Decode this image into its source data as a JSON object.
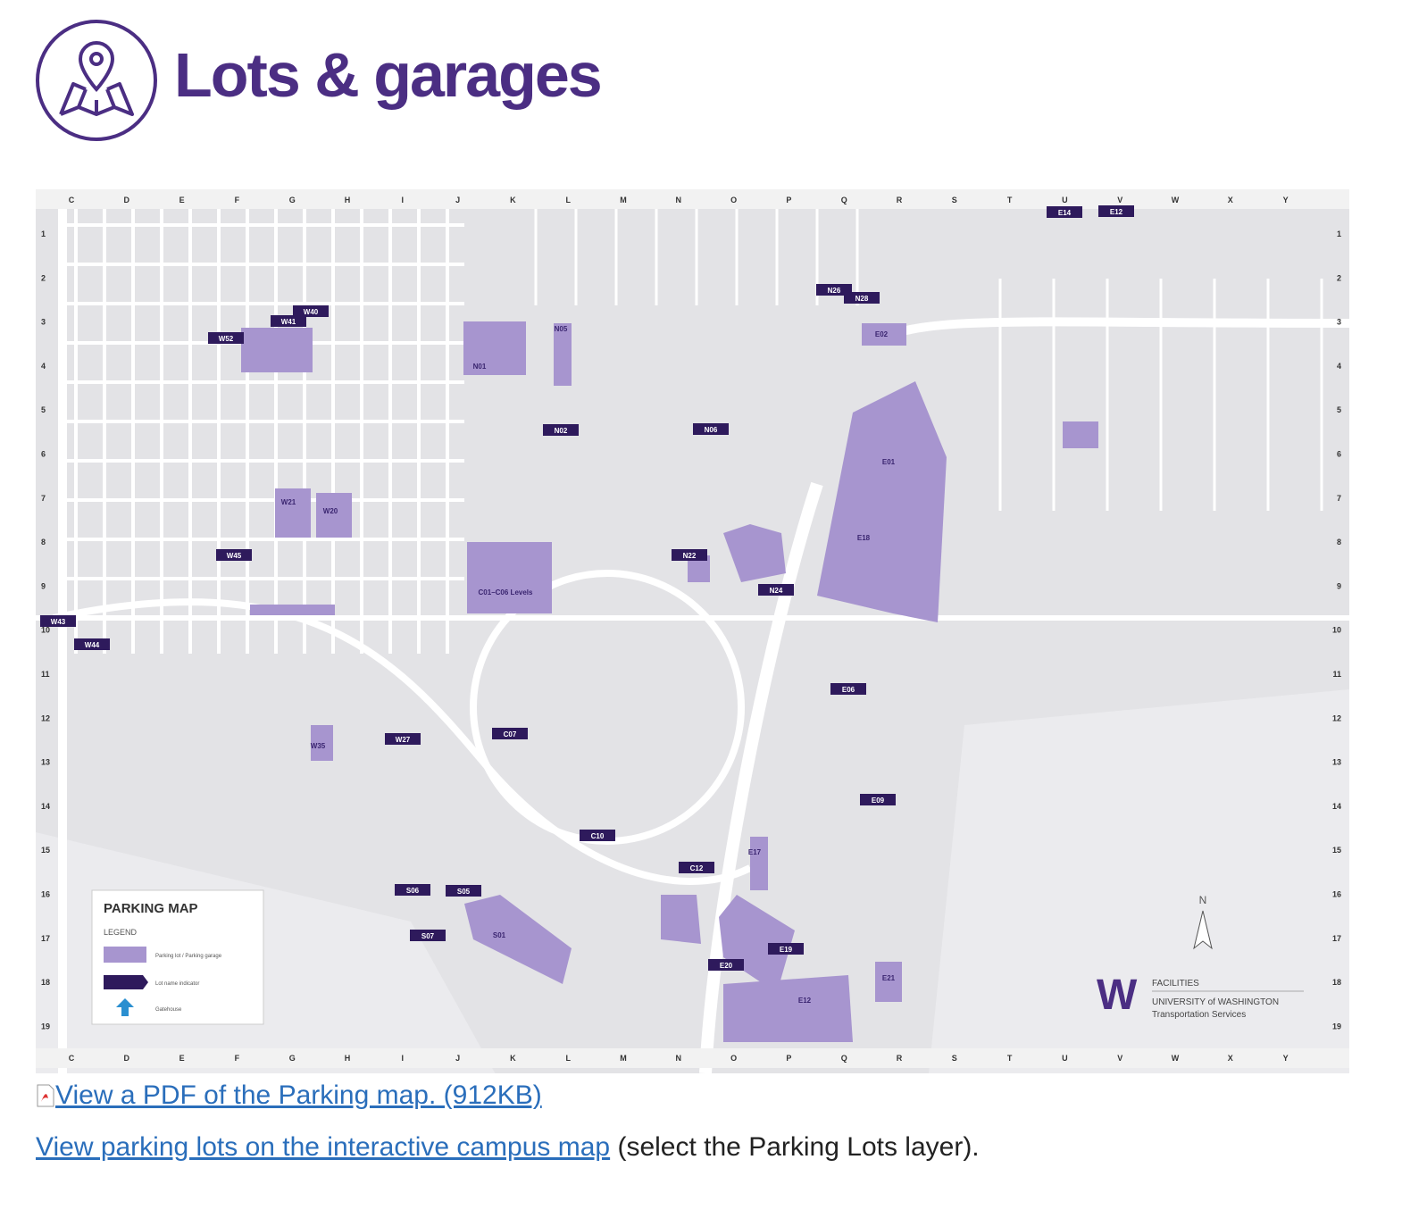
{
  "header": {
    "title": "Lots & garages"
  },
  "map": {
    "columns": [
      "C",
      "D",
      "E",
      "F",
      "G",
      "H",
      "I",
      "J",
      "K",
      "L",
      "M",
      "N",
      "O",
      "P",
      "Q",
      "R",
      "S",
      "T",
      "U",
      "V",
      "W",
      "X",
      "Y"
    ],
    "rows": [
      "1",
      "2",
      "3",
      "4",
      "5",
      "6",
      "7",
      "8",
      "9",
      "10",
      "11",
      "12",
      "13",
      "14",
      "15",
      "16",
      "17",
      "18",
      "19"
    ],
    "legend": {
      "title": "PARKING MAP",
      "subtitle": "LEGEND",
      "items": [
        "Parking lot / Parking garage",
        "Lot name indicator",
        "Gatehouse"
      ]
    },
    "north": "N",
    "logo": {
      "mark": "W",
      "facilities": "FACILITIES",
      "university": "UNIVERSITY of WASHINGTON",
      "unit": "Transportation Services"
    },
    "lots": [
      "E14",
      "E12",
      "N26",
      "N28",
      "E02",
      "N05",
      "N01",
      "E01",
      "E18",
      "W21",
      "W20",
      "W45",
      "N02",
      "N06",
      "N22",
      "N24",
      "C01–C06 Levels",
      "W43",
      "W44",
      "W35",
      "W27",
      "C07",
      "C10",
      "C12",
      "E17",
      "S01",
      "E12",
      "E21",
      "E06",
      "E09",
      "S06",
      "S07",
      "S05",
      "E19",
      "E20",
      "W52",
      "W41",
      "W40"
    ]
  },
  "links": {
    "pdf": "View a PDF of the Parking map. (912KB)",
    "campus_map": "View parking lots on the interactive campus map",
    "note": "(select the Parking Lots layer)."
  }
}
